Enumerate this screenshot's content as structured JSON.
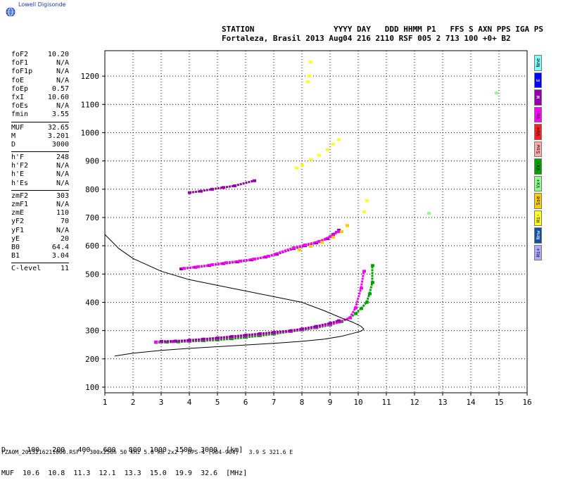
{
  "logo": {
    "text": "Lowell Digisonde",
    "icon": "globe-icon"
  },
  "header": {
    "line1": "STATION                 YYYY DAY   DDD HHMM P1   FFS S AXN PPS IGA PS",
    "line2": "Fortaleza, Brasil 2013 Aug04 216 2110 RSF 005 2 713 100 +0+ B2"
  },
  "params": [
    {
      "name": "foF2",
      "value": "10.20"
    },
    {
      "name": "foF1",
      "value": "N/A"
    },
    {
      "name": "foF1p",
      "value": "N/A"
    },
    {
      "name": "foE",
      "value": "N/A"
    },
    {
      "name": "foEp",
      "value": "0.57"
    },
    {
      "name": "fxI",
      "value": "10.60"
    },
    {
      "name": "foEs",
      "value": "N/A"
    },
    {
      "name": "fmin",
      "value": "3.55"
    },
    {
      "sep": true
    },
    {
      "name": "MUF",
      "value": "32.65"
    },
    {
      "name": "M",
      "value": "3.201"
    },
    {
      "name": "D",
      "value": "3000"
    },
    {
      "sep": true
    },
    {
      "name": "h'F",
      "value": "248"
    },
    {
      "name": "h'F2",
      "value": "N/A"
    },
    {
      "name": "h'E",
      "value": "N/A"
    },
    {
      "name": "h'Es",
      "value": "N/A"
    },
    {
      "sep": true
    },
    {
      "name": "zmF2",
      "value": "303"
    },
    {
      "name": "zmF1",
      "value": "N/A"
    },
    {
      "name": "zmE",
      "value": "110"
    },
    {
      "name": "yF2",
      "value": "70"
    },
    {
      "name": "yF1",
      "value": "N/A"
    },
    {
      "name": "yE",
      "value": "20"
    },
    {
      "name": "B0",
      "value": "64.4"
    },
    {
      "name": "B1",
      "value": "3.04"
    },
    {
      "sep": true
    },
    {
      "name": "C-level",
      "value": "11"
    }
  ],
  "legend": [
    {
      "label": "Nne",
      "color": "#7fffff"
    },
    {
      "label": "E",
      "color": "#0000ff"
    },
    {
      "label": "W",
      "color": "#9400a8"
    },
    {
      "label": "Vo-",
      "color": "#ff00ff"
    },
    {
      "label": "Vo+",
      "color": "#ff2020"
    },
    {
      "label": "Ssw",
      "color": "#ffaaaa"
    },
    {
      "label": "Vx-",
      "color": "#00a000"
    },
    {
      "label": "Vx+",
      "color": "#90ff90"
    },
    {
      "label": "Sse",
      "color": "#ffcc00"
    },
    {
      "label": "Hi-",
      "color": "#ffff20"
    },
    {
      "label": "Nnw",
      "color": "#1050a0"
    },
    {
      "label": "Hi+",
      "color": "#b0a8ff"
    }
  ],
  "chart_data": {
    "type": "scatter",
    "xlabel": "",
    "ylabel": "",
    "xlim": [
      1,
      16
    ],
    "ylim": [
      80,
      1290
    ],
    "xticks": [
      1,
      2,
      3,
      4,
      5,
      6,
      7,
      8,
      9,
      10,
      11,
      12,
      13,
      14,
      15,
      16
    ],
    "yticks": [
      100,
      200,
      300,
      400,
      500,
      600,
      700,
      800,
      900,
      1000,
      1100,
      1200
    ],
    "grid": true,
    "profile_curve": {
      "name": "",
      "x": [
        1.35,
        2.0,
        3.0,
        4.0,
        5.0,
        6.0,
        7.0,
        8.0,
        8.8,
        9.4,
        9.8,
        10.1,
        10.2,
        10.1,
        9.8,
        9.4,
        8.8,
        8.0,
        7.0,
        6.0,
        5.0,
        4.0,
        3.0,
        2.0,
        1.5,
        1.0
      ],
      "y": [
        210,
        220,
        230,
        237,
        243,
        249,
        255,
        262,
        270,
        280,
        290,
        298,
        305,
        315,
        330,
        345,
        370,
        400,
        420,
        440,
        460,
        480,
        510,
        555,
        590,
        640
      ]
    },
    "series": [
      {
        "color": "#00a000",
        "x": [
          2.8,
          3.2,
          3.6,
          4.0,
          4.5,
          5.0,
          5.5,
          6.0,
          6.5,
          7.0,
          7.6,
          8.0,
          8.5,
          9.0,
          9.4,
          9.7,
          9.9,
          10.1,
          10.3,
          10.4,
          10.5,
          10.5
        ],
        "y": [
          258,
          259,
          260,
          262,
          264,
          267,
          271,
          276,
          282,
          288,
          297,
          302,
          310,
          320,
          332,
          345,
          360,
          378,
          400,
          430,
          470,
          530
        ]
      },
      {
        "color": "#ff00ff",
        "x": [
          2.8,
          3.4,
          4.0,
          4.5,
          5.0,
          5.5,
          6.0,
          6.5,
          7.0,
          7.6,
          8.0,
          8.5,
          9.0,
          9.3,
          9.7,
          9.9,
          10.1,
          10.2
        ],
        "y": [
          260,
          261,
          264,
          268,
          272,
          277,
          282,
          287,
          292,
          298,
          304,
          312,
          322,
          330,
          345,
          380,
          450,
          510
        ]
      },
      {
        "color": "#9400a8",
        "x": [
          3.0,
          3.5,
          4.0,
          4.5,
          5.0,
          5.5,
          6.0,
          6.5,
          7.0,
          7.6,
          8.0,
          8.5,
          9.0,
          9.3
        ],
        "y": [
          262,
          263,
          266,
          270,
          274,
          279,
          284,
          289,
          294,
          300,
          306,
          315,
          326,
          335
        ]
      },
      {
        "color": "#9400a8",
        "x": [
          3.7,
          4.2,
          4.7,
          5.2,
          5.7,
          6.2,
          6.7,
          7.1,
          7.7,
          8.1,
          8.5,
          8.9,
          9.1,
          9.3
        ],
        "y": [
          518,
          524,
          530,
          537,
          543,
          550,
          560,
          570,
          590,
          600,
          610,
          625,
          640,
          655
        ]
      },
      {
        "color": "#ff00ff",
        "x": [
          3.8,
          4.3,
          4.8,
          5.3,
          5.8,
          6.3,
          6.8,
          7.7,
          8.1,
          8.6,
          9.0,
          9.3
        ],
        "y": [
          520,
          526,
          533,
          540,
          546,
          553,
          563,
          593,
          603,
          615,
          632,
          650
        ]
      },
      {
        "color": "#9400a8",
        "x": [
          4.0,
          4.4,
          4.8,
          5.2,
          5.6,
          6.3
        ],
        "y": [
          788,
          793,
          800,
          806,
          812,
          830
        ]
      },
      {
        "color": "#ffff20",
        "x": [
          7.8,
          8.0,
          8.3,
          8.6,
          8.9,
          9.1,
          9.3,
          9.6,
          10.2,
          10.3,
          8.2,
          8.25,
          8.3
        ],
        "y": [
          875,
          885,
          905,
          920,
          940,
          960,
          975,
          670,
          720,
          760,
          1180,
          1200,
          1250
        ]
      },
      {
        "color": "#ffcc00",
        "x": [
          7.9,
          8.3,
          8.7,
          9.1,
          9.4,
          9.6
        ],
        "y": [
          585,
          598,
          612,
          630,
          650,
          672
        ]
      },
      {
        "color": "#90ff90",
        "x": [
          12.5,
          14.9
        ],
        "y": [
          715,
          1140
        ]
      }
    ]
  },
  "muf_table": {
    "line1": "D     100   200   400   600   800  1000  1500  3000  [km]",
    "line2": "MUF  10.6  10.8  11.3  12.1  13.3  15.0  19.9  32.6  [MHz]"
  },
  "footer": "FZA0M_2013216211000.RSF / 300x256h 50 kHz 5.0 km 2x2 / DPS-4 (904-904)   3.9 S 321.6 E"
}
